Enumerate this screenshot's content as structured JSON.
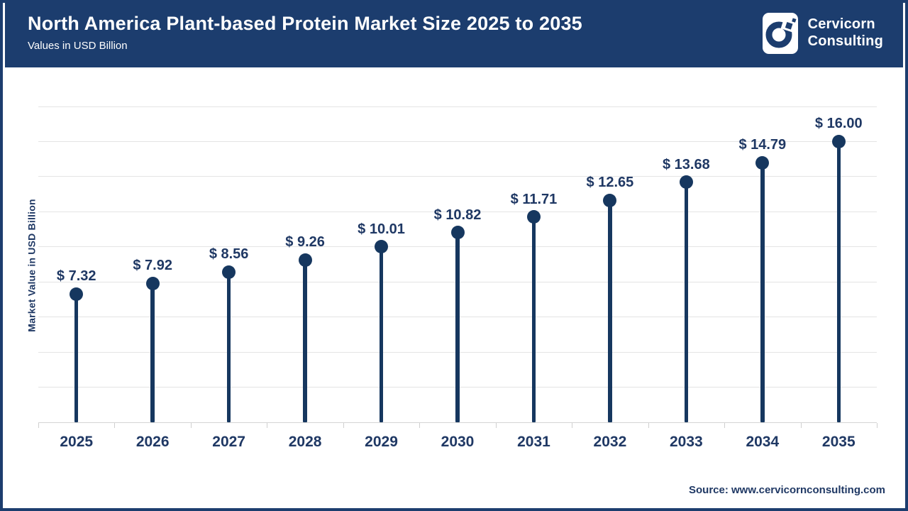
{
  "header": {
    "title": "North America Plant-based Protein Market Size 2025 to 2035",
    "subtitle": "Values in USD Billion"
  },
  "logo": {
    "line1": "Cervicorn",
    "line2": "Consulting"
  },
  "chart_data": {
    "type": "lollipop",
    "categories": [
      "2025",
      "2026",
      "2027",
      "2028",
      "2029",
      "2030",
      "2031",
      "2032",
      "2033",
      "2034",
      "2035"
    ],
    "values": [
      7.32,
      7.92,
      8.56,
      9.26,
      10.01,
      10.82,
      11.71,
      12.65,
      13.68,
      14.79,
      16.0
    ],
    "value_labels": [
      "$ 7.32",
      "$ 7.92",
      "$ 8.56",
      "$ 9.26",
      "$ 10.01",
      "$ 10.82",
      "$ 11.71",
      "$ 12.65",
      "$ 13.68",
      "$ 14.79",
      "$ 16.00"
    ],
    "title": "North America Plant-based Protein Market Size 2025 to 2035",
    "xlabel": "",
    "ylabel": "Market Value in USD Billion",
    "ylim": [
      0,
      18
    ],
    "grid_step": 2,
    "grid_on": true,
    "legend": "none",
    "series_color": "#16375f",
    "gridline_color": "#e4e4e4"
  },
  "source": {
    "text": "Source: www.cervicornconsulting.com"
  },
  "colors": {
    "header_navy": "#1c3d6e",
    "chart_navy": "#16375f",
    "label_navy": "#1f3864",
    "grid_gray": "#e4e4e4"
  }
}
